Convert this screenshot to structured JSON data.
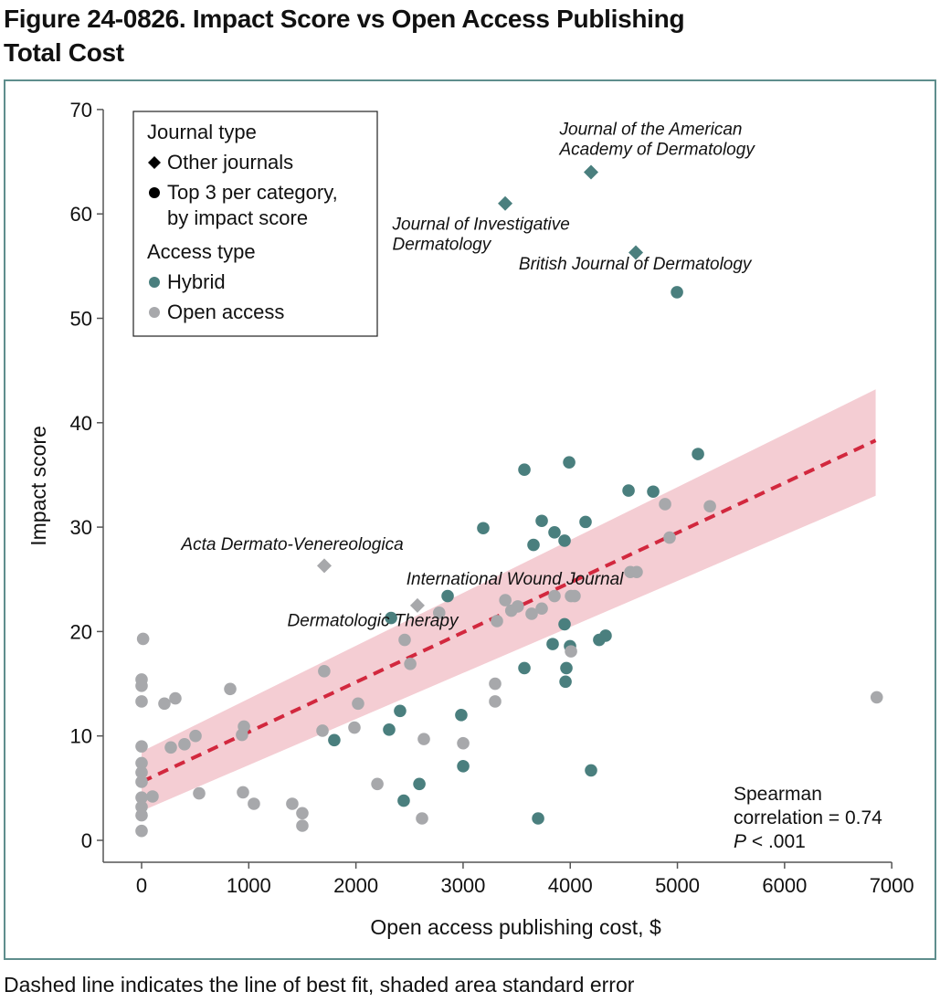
{
  "figure": {
    "title": "Figure 24-0826. Impact Score vs Open Access Publishing Total Cost",
    "title_line1": "Figure 24-0826. Impact Score vs Open Access Publishing",
    "title_line2": "Total Cost",
    "caption": "Dashed line indicates the line of best fit, shaded area standard error"
  },
  "colors": {
    "hybrid": "#4a7f7e",
    "open_access": "#a7a8ab",
    "fit_line": "#d2283e",
    "band": "#f4cdd3",
    "frame": "#5f8e8d"
  },
  "chart_data": {
    "type": "scatter",
    "title": "Impact Score vs Open Access Publishing Total Cost",
    "xlabel": "Open access publishing cost, $",
    "ylabel": "Impact score",
    "xlim": [
      -350,
      7000
    ],
    "ylim": [
      -2,
      70
    ],
    "xticks": [
      0,
      1000,
      2000,
      3000,
      4000,
      5000,
      6000,
      7000
    ],
    "xtick_labels": [
      "0",
      "1000",
      "2000",
      "3000",
      "4000",
      "5000",
      "6000",
      "7000"
    ],
    "yticks": [
      0,
      10,
      20,
      30,
      40,
      50,
      60,
      70
    ],
    "ytick_labels": [
      "0",
      "10",
      "20",
      "30",
      "40",
      "50",
      "60",
      "70"
    ],
    "grid": false,
    "legend": {
      "placement": "top-left",
      "sections": [
        {
          "title": "Journal type",
          "items": [
            {
              "label": "Other journals",
              "marker": "diamond",
              "color": "#000000"
            },
            {
              "label": "Top 3 per category,",
              "label2": "by impact score",
              "marker": "circle",
              "color": "#000000"
            }
          ]
        },
        {
          "title": "Access type",
          "items": [
            {
              "label": "Hybrid",
              "marker": "circle",
              "color": "#4a7f7e"
            },
            {
              "label": "Open access",
              "marker": "circle",
              "color": "#a7a8ab"
            }
          ]
        }
      ]
    },
    "fit": {
      "x": [
        0,
        6850
      ],
      "y": [
        5.6,
        38.3
      ],
      "band_upper": [
        8.5,
        43.2
      ],
      "band_lower": [
        2.8,
        33.0
      ],
      "style": "dashed"
    },
    "annotations": [
      {
        "text": "Journal of the American",
        "text2": "Academy of Dermatology",
        "x": 3900,
        "y": 67.6,
        "anchor": "start"
      },
      {
        "text": "Journal of Investigative",
        "text2": "Dermatology",
        "x": 2340,
        "y": 58.5,
        "anchor": "start"
      },
      {
        "text": "British Journal of Dermatology",
        "x": 3520,
        "y": 54.7,
        "anchor": "start"
      },
      {
        "text": "Acta Dermato-Venereologica",
        "x": 370,
        "y": 27.8,
        "anchor": "start"
      },
      {
        "text": "International Wound Journal",
        "x": 2470,
        "y": 24.5,
        "anchor": "start"
      },
      {
        "text": "Dermatologic Therapy",
        "x": 1360,
        "y": 20.5,
        "anchor": "start"
      }
    ],
    "stat_text": {
      "line1": "Spearman",
      "line2": "correlation = 0.74",
      "line3_p": "P",
      "line3_rest": " < .001"
    },
    "series": [
      {
        "name": "Hybrid - Other journals",
        "access": "hybrid",
        "marker": "diamond",
        "points": [
          [
            4194,
            64.0
          ],
          [
            3393,
            61.0
          ],
          [
            4612,
            56.3
          ]
        ]
      },
      {
        "name": "Open access - Other journals",
        "access": "open_access",
        "marker": "diamond",
        "points": [
          [
            1705,
            26.3
          ],
          [
            2574,
            22.5
          ]
        ]
      },
      {
        "name": "Hybrid - Top 3",
        "access": "hybrid",
        "marker": "circle",
        "points": [
          [
            4996,
            52.5
          ],
          [
            5192,
            37.0
          ],
          [
            3990,
            36.2
          ],
          [
            3572,
            35.5
          ],
          [
            4544,
            33.5
          ],
          [
            4774,
            33.4
          ],
          [
            3734,
            30.6
          ],
          [
            4143,
            30.5
          ],
          [
            3188,
            29.9
          ],
          [
            3853,
            29.5
          ],
          [
            3947,
            28.7
          ],
          [
            3657,
            28.3
          ],
          [
            2856,
            23.4
          ],
          [
            2328,
            21.3
          ],
          [
            3947,
            20.7
          ],
          [
            4330,
            19.6
          ],
          [
            4270,
            19.2
          ],
          [
            3836,
            18.8
          ],
          [
            3998,
            18.6
          ],
          [
            3572,
            16.5
          ],
          [
            3964,
            16.5
          ],
          [
            3956,
            15.2
          ],
          [
            2412,
            12.4
          ],
          [
            2983,
            12.0
          ],
          [
            2310,
            10.6
          ],
          [
            1798,
            9.6
          ],
          [
            3001,
            7.1
          ],
          [
            4194,
            6.7
          ],
          [
            2592,
            5.4
          ],
          [
            2446,
            3.8
          ],
          [
            3700,
            2.1
          ]
        ]
      },
      {
        "name": "Open access - Top 3",
        "access": "open_access",
        "marker": "circle",
        "points": [
          [
            5303,
            32.0
          ],
          [
            4885,
            32.2
          ],
          [
            4927,
            29.0
          ],
          [
            4561,
            25.7
          ],
          [
            4620,
            25.7
          ],
          [
            3394,
            23.0
          ],
          [
            3853,
            23.4
          ],
          [
            4007,
            23.4
          ],
          [
            4040,
            23.4
          ],
          [
            3510,
            22.4
          ],
          [
            3450,
            22.0
          ],
          [
            3734,
            22.2
          ],
          [
            2777,
            21.8
          ],
          [
            3640,
            21.7
          ],
          [
            3316,
            21.0
          ],
          [
            2455,
            19.2
          ],
          [
            4007,
            18.1
          ],
          [
            2507,
            16.9
          ],
          [
            3299,
            15.0
          ],
          [
            3299,
            13.3
          ],
          [
            6860,
            13.7
          ],
          [
            14,
            19.3
          ],
          [
            0,
            15.4
          ],
          [
            0,
            14.8
          ],
          [
            0,
            13.3
          ],
          [
            213,
            13.1
          ],
          [
            315,
            13.6
          ],
          [
            827,
            14.5
          ],
          [
            1704,
            16.2
          ],
          [
            2020,
            13.1
          ],
          [
            1986,
            10.8
          ],
          [
            1688,
            10.5
          ],
          [
            955,
            10.9
          ],
          [
            937,
            10.1
          ],
          [
            503,
            10.0
          ],
          [
            400,
            9.2
          ],
          [
            273,
            8.9
          ],
          [
            0,
            9.0
          ],
          [
            0,
            7.4
          ],
          [
            0,
            6.5
          ],
          [
            0,
            5.6
          ],
          [
            102,
            4.2
          ],
          [
            0,
            4.1
          ],
          [
            0,
            3.2
          ],
          [
            0,
            2.4
          ],
          [
            0,
            0.9
          ],
          [
            537,
            4.5
          ],
          [
            946,
            4.6
          ],
          [
            1048,
            3.5
          ],
          [
            1406,
            3.5
          ],
          [
            1500,
            2.6
          ],
          [
            1500,
            1.4
          ],
          [
            2200,
            5.4
          ],
          [
            2634,
            9.7
          ],
          [
            3001,
            9.3
          ],
          [
            2617,
            2.1
          ]
        ]
      }
    ]
  }
}
